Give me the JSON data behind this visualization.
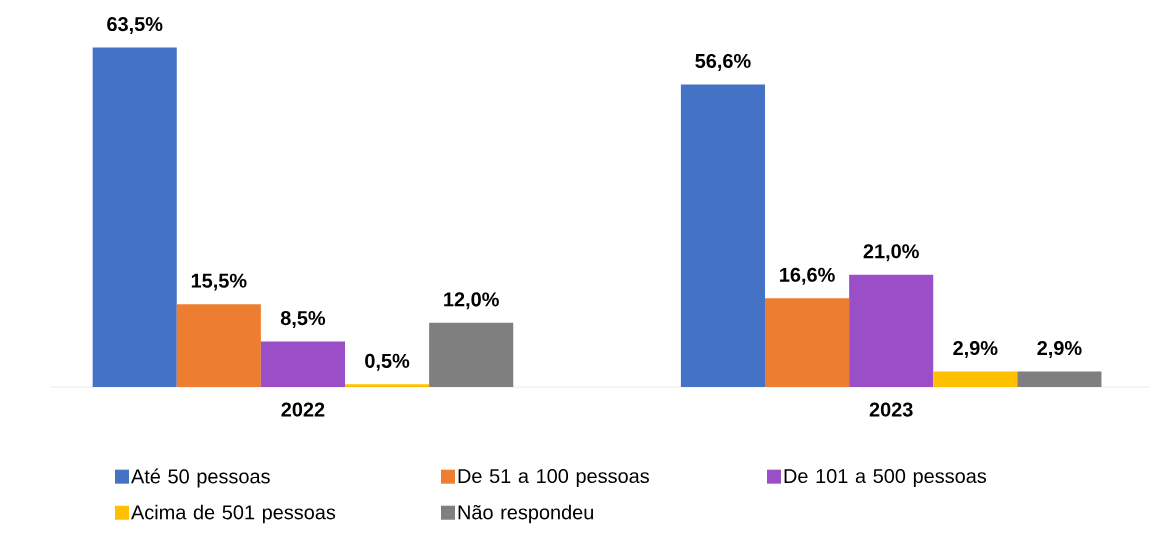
{
  "chart_data": {
    "type": "bar",
    "categories": [
      "2022",
      "2023"
    ],
    "series": [
      {
        "name": "Até 50 pessoas",
        "color": "#4472c4",
        "values": [
          63.5,
          56.6
        ],
        "value_labels": [
          "63,5%",
          "56,6%"
        ]
      },
      {
        "name": "De 51 a 100 pessoas",
        "color": "#ed7d31",
        "values": [
          15.5,
          16.6
        ],
        "value_labels": [
          "15,5%",
          "16,6%"
        ]
      },
      {
        "name": "De 101 a 500 pessoas",
        "color": "#9a4fc9",
        "values": [
          8.5,
          21.0
        ],
        "value_labels": [
          "8,5%",
          "21,0%"
        ]
      },
      {
        "name": "Acima de 501 pessoas",
        "color": "#ffc000",
        "values": [
          0.5,
          2.9
        ],
        "value_labels": [
          "0,5%",
          "2,9%"
        ]
      },
      {
        "name": "Não respondeu",
        "color": "#7f7f7f",
        "values": [
          12.0,
          2.9
        ],
        "value_labels": [
          "12,0%",
          "2,9%"
        ]
      }
    ],
    "legend": "bottom"
  }
}
